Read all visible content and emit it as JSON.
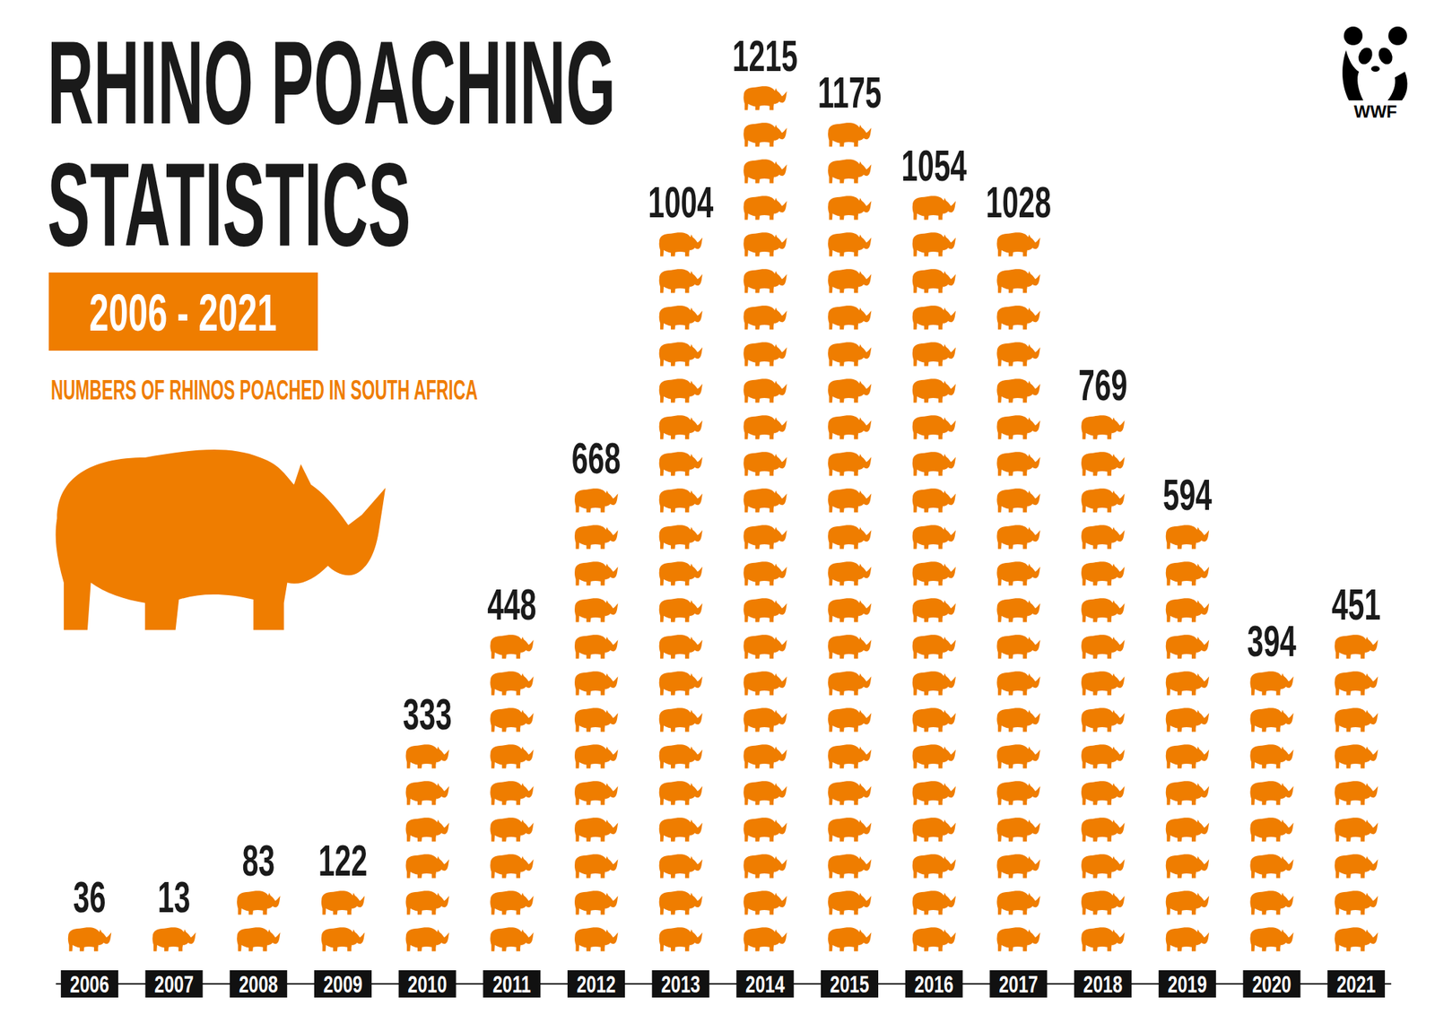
{
  "chart_data": {
    "type": "bar",
    "title": "RHINO POACHING STATISTICS",
    "subtitle": "2006 - 2021",
    "caption": "NUMBERS OF RHINOS POACHED IN SOUTH AFRICA",
    "logo_text": "WWF",
    "categories": [
      "2006",
      "2007",
      "2008",
      "2009",
      "2010",
      "2011",
      "2012",
      "2013",
      "2014",
      "2015",
      "2016",
      "2017",
      "2018",
      "2019",
      "2020",
      "2021"
    ],
    "values": [
      36,
      13,
      83,
      122,
      333,
      448,
      668,
      1004,
      1215,
      1175,
      1054,
      1028,
      769,
      594,
      394,
      451
    ],
    "color": "#ef7d00",
    "ylim": [
      0,
      1250
    ],
    "grid": false,
    "data_labels": true,
    "tick_labels": "x"
  }
}
